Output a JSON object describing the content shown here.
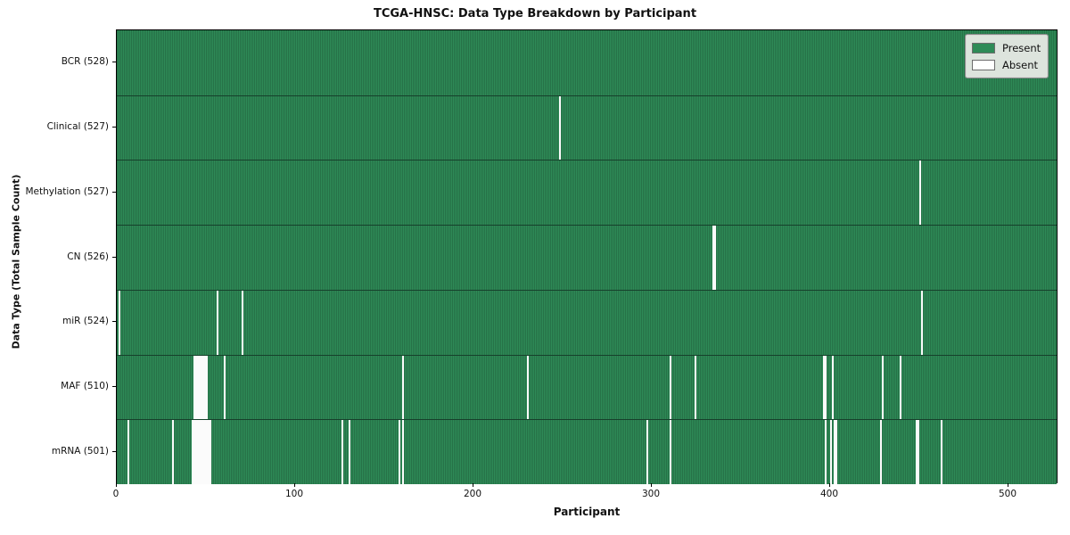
{
  "chart_data": {
    "type": "heatmap",
    "title": "TCGA-HNSC: Data Type Breakdown by Participant",
    "xlabel": "Participant",
    "ylabel": "Data Type (Total Sample Count)",
    "x_ticks": [
      0,
      100,
      200,
      300,
      400,
      500
    ],
    "xlim": [
      0,
      528
    ],
    "n_participants": 528,
    "grid": false,
    "legend_position": "upper right",
    "colors": {
      "present": "#2e8b57",
      "present_edge": "#1d5737",
      "absent": "#fbfbfb"
    },
    "rows": [
      {
        "label": "BCR (528)",
        "name": "BCR",
        "total": 528,
        "absent_indices": []
      },
      {
        "label": "Clinical (527)",
        "name": "Clinical",
        "total": 527,
        "absent_indices": [
          248
        ]
      },
      {
        "label": "Methylation (527)",
        "name": "Methylation",
        "total": 527,
        "absent_indices": [
          450
        ]
      },
      {
        "label": "CN (526)",
        "name": "CN",
        "total": 526,
        "absent_indices": [
          334,
          335
        ]
      },
      {
        "label": "miR (524)",
        "name": "miR",
        "total": 524,
        "absent_indices": [
          1,
          56,
          70,
          451
        ]
      },
      {
        "label": "MAF (510)",
        "name": "MAF",
        "total": 510,
        "absent_indices": [
          43,
          44,
          45,
          46,
          47,
          48,
          49,
          50,
          60,
          160,
          230,
          310,
          324,
          396,
          397,
          401,
          429,
          439
        ]
      },
      {
        "label": "mRNA (501)",
        "name": "mRNA",
        "total": 501,
        "absent_indices": [
          6,
          31,
          42,
          43,
          44,
          45,
          46,
          47,
          48,
          49,
          50,
          51,
          52,
          126,
          130,
          158,
          160,
          297,
          310,
          397,
          400,
          402,
          403,
          428,
          448,
          449,
          462
        ]
      }
    ],
    "legend": [
      {
        "label": "Present",
        "color": "#2e8b57"
      },
      {
        "label": "Absent",
        "color": "#ffffff"
      }
    ]
  }
}
